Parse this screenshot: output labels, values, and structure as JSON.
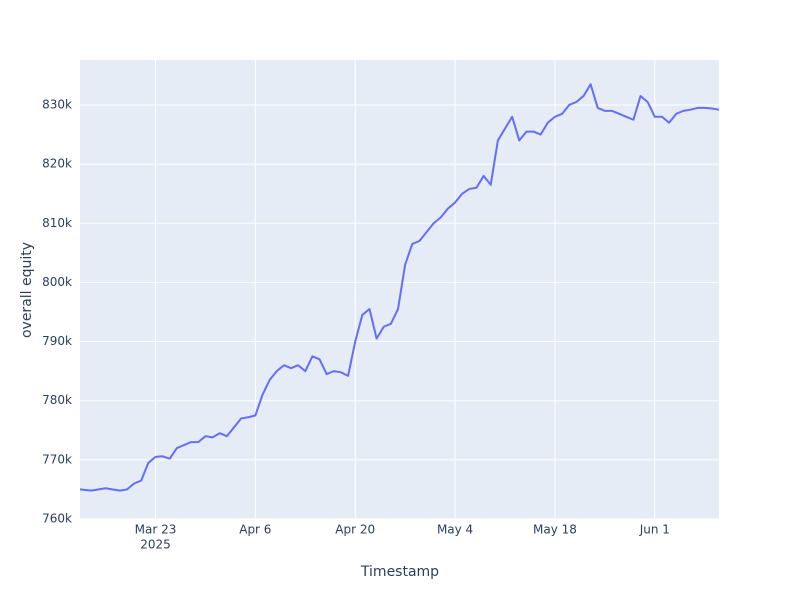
{
  "chart_data": {
    "type": "line",
    "xlabel": "Timestamp",
    "ylabel": "overall equity",
    "x": [
      "2025-03-12T10:00",
      "2025-03-14T00:00",
      "2025-03-16T00:00",
      "2025-03-18T00:00",
      "2025-03-19T00:00",
      "2025-03-20T00:00",
      "2025-03-21T00:00",
      "2025-03-22T00:00",
      "2025-03-23T00:00",
      "2025-03-24T00:00",
      "2025-03-25T00:00",
      "2025-03-26T00:00",
      "2025-03-27T00:00",
      "2025-03-28T00:00",
      "2025-03-29T00:00",
      "2025-03-30T00:00",
      "2025-03-31T00:00",
      "2025-04-01T00:00",
      "2025-04-02T00:00",
      "2025-04-03T00:00",
      "2025-04-04T00:00",
      "2025-04-05T00:00",
      "2025-04-06T00:00",
      "2025-04-07T00:00",
      "2025-04-08T00:00",
      "2025-04-09T00:00",
      "2025-04-10T00:00",
      "2025-04-11T00:00",
      "2025-04-12T00:00",
      "2025-04-13T00:00",
      "2025-04-14T00:00",
      "2025-04-15T00:00",
      "2025-04-16T00:00",
      "2025-04-17T00:00",
      "2025-04-18T00:00",
      "2025-04-19T00:00",
      "2025-04-20T00:00",
      "2025-04-21T00:00",
      "2025-04-22T00:00",
      "2025-04-23T00:00",
      "2025-04-24T00:00",
      "2025-04-25T00:00",
      "2025-04-26T00:00",
      "2025-04-27T00:00",
      "2025-04-28T00:00",
      "2025-04-29T00:00",
      "2025-04-30T00:00",
      "2025-05-01T00:00",
      "2025-05-02T00:00",
      "2025-05-03T00:00",
      "2025-05-04T00:00",
      "2025-05-05T00:00",
      "2025-05-06T00:00",
      "2025-05-07T00:00",
      "2025-05-08T00:00",
      "2025-05-09T00:00",
      "2025-05-10T00:00",
      "2025-05-11T00:00",
      "2025-05-12T00:00",
      "2025-05-13T00:00",
      "2025-05-14T00:00",
      "2025-05-15T00:00",
      "2025-05-16T00:00",
      "2025-05-17T00:00",
      "2025-05-18T00:00",
      "2025-05-19T00:00",
      "2025-05-20T00:00",
      "2025-05-21T00:00",
      "2025-05-22T00:00",
      "2025-05-23T00:00",
      "2025-05-24T00:00",
      "2025-05-25T00:00",
      "2025-05-26T00:00",
      "2025-05-27T00:00",
      "2025-05-28T00:00",
      "2025-05-29T00:00",
      "2025-05-30T00:00",
      "2025-05-31T00:00",
      "2025-06-01T00:00",
      "2025-06-02T00:00",
      "2025-06-03T00:00",
      "2025-06-04T00:00",
      "2025-06-05T00:00",
      "2025-06-06T00:00",
      "2025-06-07T00:00",
      "2025-06-08T00:00",
      "2025-06-09T00:00",
      "2025-06-10T00:00"
    ],
    "series": [
      {
        "name": "overall equity",
        "color": "#636efa",
        "values": [
          765000,
          764800,
          765200,
          764800,
          765000,
          766000,
          766500,
          769500,
          770500,
          770600,
          770200,
          772000,
          772500,
          773000,
          773000,
          774000,
          773800,
          774500,
          774000,
          775500,
          777000,
          777200,
          777500,
          781000,
          783500,
          785000,
          786000,
          785500,
          786000,
          785000,
          787500,
          787000,
          784500,
          785000,
          784800,
          784200,
          790000,
          794500,
          795500,
          790500,
          792500,
          793000,
          795500,
          803000,
          806500,
          807000,
          808500,
          810000,
          811000,
          812500,
          813500,
          815000,
          815800,
          816000,
          818000,
          816500,
          824000,
          826000,
          828000,
          824000,
          825500,
          825500,
          825000,
          827000,
          828000,
          828500,
          830000,
          830500,
          831500,
          833500,
          829500,
          829000,
          829000,
          828500,
          828000,
          827500,
          831500,
          830500,
          828000,
          828000,
          827000,
          828500,
          829000,
          829200,
          829500,
          829500,
          829400,
          829200
        ]
      }
    ],
    "xlim": [
      "2025-03-12T10:00",
      "2025-06-10T00:00"
    ],
    "xticks": [
      {
        "value": "2025-03-23T00:00",
        "label": "Mar 23"
      },
      {
        "value": "2025-04-06T00:00",
        "label": "Apr 6"
      },
      {
        "value": "2025-04-20T00:00",
        "label": "Apr 20"
      },
      {
        "value": "2025-05-04T00:00",
        "label": "May 4"
      },
      {
        "value": "2025-05-18T00:00",
        "label": "May 18"
      },
      {
        "value": "2025-06-01T00:00",
        "label": "Jun 1"
      }
    ],
    "x_year_label": "2025",
    "ylim": [
      760000,
      837600
    ],
    "yticks": [
      {
        "value": 760000,
        "label": "760k"
      },
      {
        "value": 770000,
        "label": "770k"
      },
      {
        "value": 780000,
        "label": "780k"
      },
      {
        "value": 790000,
        "label": "790k"
      },
      {
        "value": 800000,
        "label": "800k"
      },
      {
        "value": 810000,
        "label": "810k"
      },
      {
        "value": 820000,
        "label": "820k"
      },
      {
        "value": 830000,
        "label": "830k"
      }
    ],
    "grid": true
  }
}
